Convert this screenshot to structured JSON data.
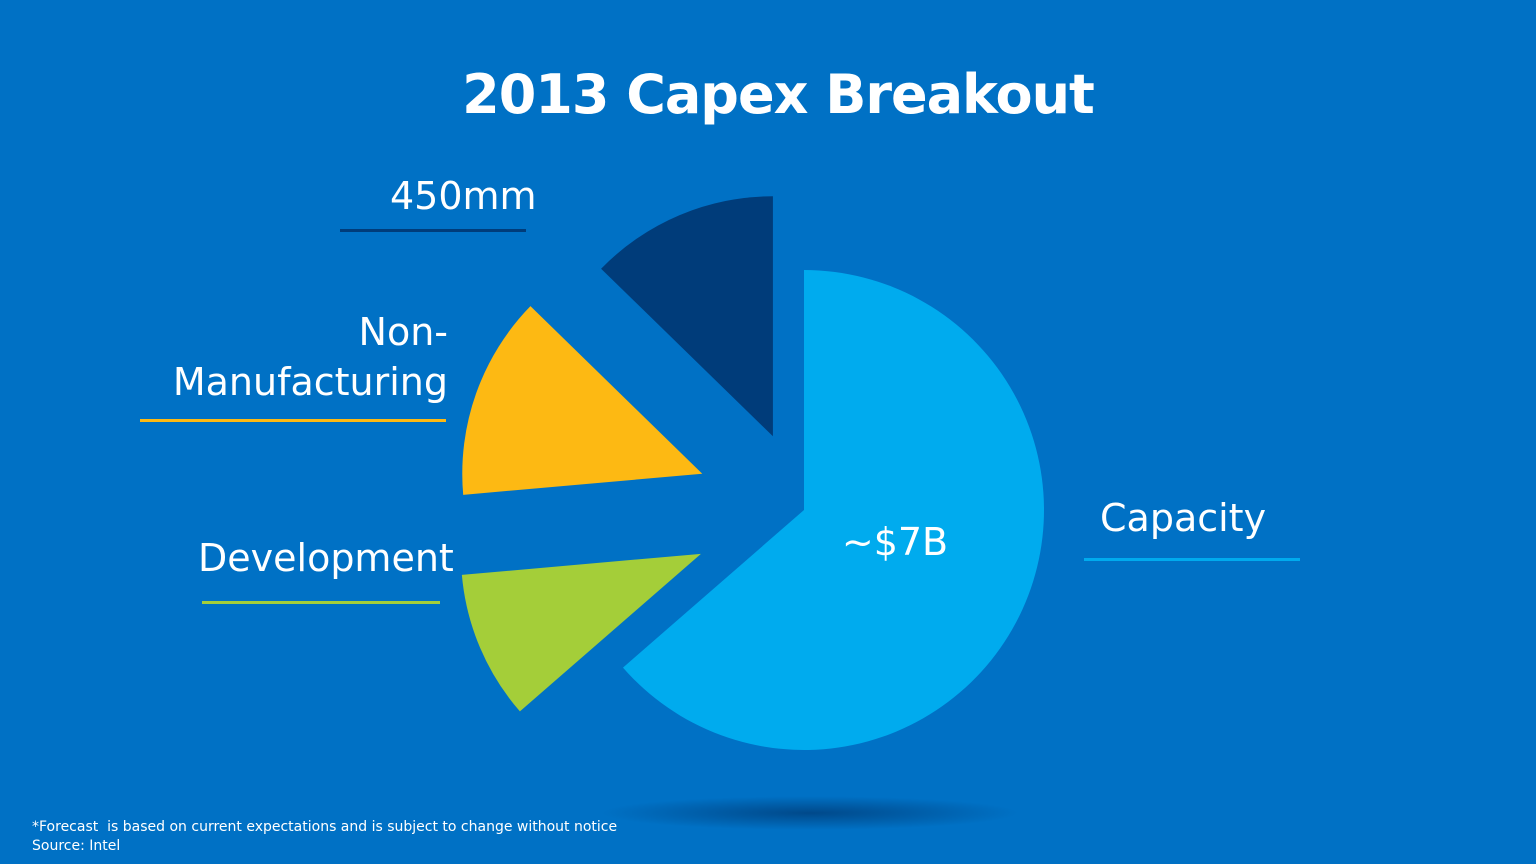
{
  "title": "2013 Capex Breakout",
  "chart_data": {
    "type": "pie",
    "title": "2013 Capex Breakout",
    "slices": [
      {
        "name": "Capacity",
        "value": 63.6,
        "value_label": "~$7B",
        "color": "#00abee"
      },
      {
        "name": "Development",
        "value": 10.0,
        "color": "#a4ce39"
      },
      {
        "name": "Non-Manufacturing",
        "value": 13.7,
        "color": "#fdb913"
      },
      {
        "name": "450mm",
        "value": 12.7,
        "color": "#003c7a"
      }
    ],
    "exploded": true,
    "labels": {
      "capacity": "Capacity",
      "development": "Development",
      "non_manufacturing_line1": "Non-",
      "non_manufacturing_line2": "Manufacturing",
      "mm450": "450mm"
    }
  },
  "footnote": {
    "line1": "*Forecast  is based on current expectations and is subject to change without notice",
    "line2": "Source: Intel"
  }
}
